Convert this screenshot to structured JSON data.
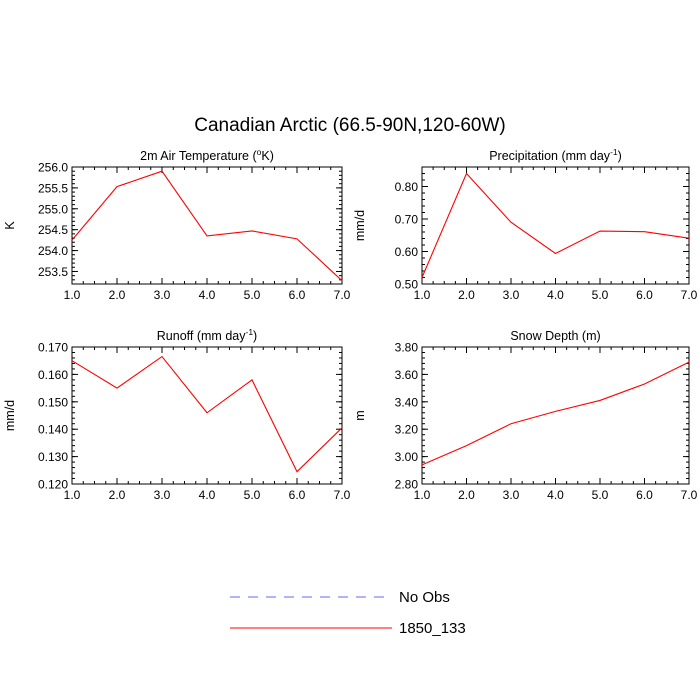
{
  "figure": {
    "title": "Canadian Arctic (66.5-90N,120-60W)"
  },
  "chart_data": [
    {
      "type": "line",
      "title_main": "2m Air Temperature (",
      "title_sup": "o",
      "title_tail": "K)",
      "ylabel": "K",
      "x": [
        1,
        2,
        3,
        4,
        5,
        6,
        7
      ],
      "xticks": [
        "1.0",
        "2.0",
        "3.0",
        "4.0",
        "5.0",
        "6.0",
        "7.0"
      ],
      "ylim": [
        253.2,
        256.0
      ],
      "yticks": [
        253.5,
        254.0,
        254.5,
        255.0,
        255.5,
        256.0
      ],
      "ytick_labels": [
        "253.5",
        "254.0",
        "254.5",
        "255.0",
        "255.5",
        "256.0"
      ],
      "series": [
        {
          "name": "1850_133",
          "color": "#ff0000",
          "values": [
            254.25,
            255.53,
            255.9,
            254.35,
            254.47,
            254.28,
            253.28
          ]
        }
      ]
    },
    {
      "type": "line",
      "title_main": "Precipitation (mm day",
      "title_sup": "-1",
      "title_tail": ")",
      "ylabel": "mm/d",
      "x": [
        1,
        2,
        3,
        4,
        5,
        6,
        7
      ],
      "xticks": [
        "1.0",
        "2.0",
        "3.0",
        "4.0",
        "5.0",
        "6.0",
        "7.0"
      ],
      "ylim": [
        0.5,
        0.86
      ],
      "yticks": [
        0.5,
        0.6,
        0.7,
        0.8
      ],
      "ytick_labels": [
        "0.50",
        "0.60",
        "0.70",
        "0.80"
      ],
      "series": [
        {
          "name": "1850_133",
          "color": "#ff0000",
          "values": [
            0.52,
            0.84,
            0.69,
            0.594,
            0.663,
            0.661,
            0.641
          ]
        }
      ]
    },
    {
      "type": "line",
      "title_main": "Runoff (mm day",
      "title_sup": "-1",
      "title_tail": ")",
      "ylabel": "mm/d",
      "x": [
        1,
        2,
        3,
        4,
        5,
        6,
        7
      ],
      "xticks": [
        "1.0",
        "2.0",
        "3.0",
        "4.0",
        "5.0",
        "6.0",
        "7.0"
      ],
      "ylim": [
        0.12,
        0.17
      ],
      "yticks": [
        0.12,
        0.13,
        0.14,
        0.15,
        0.16,
        0.17
      ],
      "ytick_labels": [
        "0.120",
        "0.130",
        "0.140",
        "0.150",
        "0.160",
        "0.170"
      ],
      "series": [
        {
          "name": "1850_133",
          "color": "#ff0000",
          "values": [
            0.165,
            0.155,
            0.1665,
            0.146,
            0.158,
            0.1245,
            0.1405
          ]
        }
      ]
    },
    {
      "type": "line",
      "title_main": "Snow Depth (m)",
      "title_sup": "",
      "title_tail": "",
      "ylabel": "m",
      "x": [
        1,
        2,
        3,
        4,
        5,
        6,
        7
      ],
      "xticks": [
        "1.0",
        "2.0",
        "3.0",
        "4.0",
        "5.0",
        "6.0",
        "7.0"
      ],
      "ylim": [
        2.8,
        3.8
      ],
      "yticks": [
        2.8,
        3.0,
        3.2,
        3.4,
        3.6,
        3.8
      ],
      "ytick_labels": [
        "2.80",
        "3.00",
        "3.20",
        "3.40",
        "3.60",
        "3.80"
      ],
      "series": [
        {
          "name": "1850_133",
          "color": "#ff0000",
          "values": [
            2.94,
            3.08,
            3.24,
            3.33,
            3.41,
            3.53,
            3.69
          ]
        }
      ]
    }
  ],
  "legend": {
    "items": [
      {
        "label": "No Obs",
        "color": "#6666ff",
        "style": "dashed"
      },
      {
        "label": "1850_133",
        "color": "#ff0000",
        "style": "solid"
      }
    ]
  }
}
